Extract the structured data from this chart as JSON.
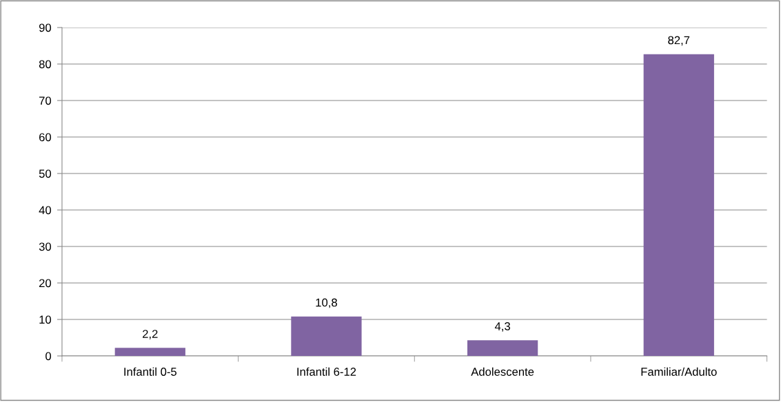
{
  "chart_data": {
    "type": "bar",
    "categories": [
      "Infantil 0-5",
      "Infantil 6-12",
      "Adolescente",
      "Familiar/Adulto"
    ],
    "values": [
      2.2,
      10.8,
      4.3,
      82.7
    ],
    "value_labels": [
      "2,2",
      "10,8",
      "4,3",
      "82,7"
    ],
    "color": "#8064a2",
    "ylim": [
      0,
      90
    ],
    "yticks": [
      0,
      10,
      20,
      30,
      40,
      50,
      60,
      70,
      80,
      90
    ],
    "grid": "y",
    "legend": false
  }
}
